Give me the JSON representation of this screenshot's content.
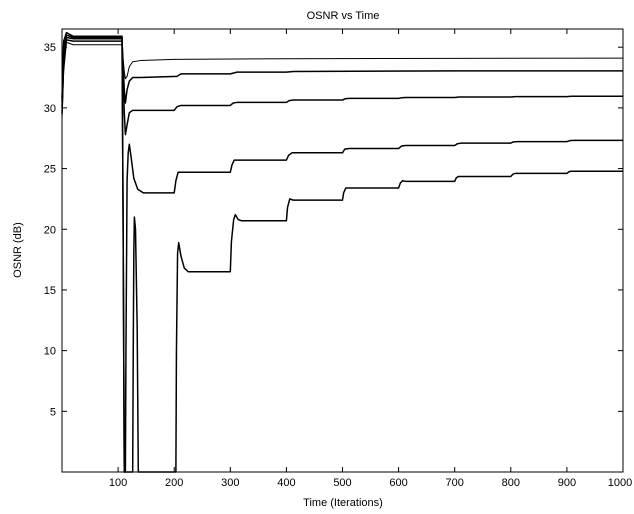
{
  "chart_data": {
    "type": "line",
    "title": "OSNR vs Time",
    "xlabel": "Time (Iterations)",
    "ylabel": "OSNR (dB)",
    "xlim": [
      0,
      1000
    ],
    "ylim": [
      0,
      36.5
    ],
    "xticks": [
      100,
      200,
      300,
      400,
      500,
      600,
      700,
      800,
      900,
      1000
    ],
    "yticks": [
      5,
      10,
      15,
      20,
      25,
      30,
      35
    ],
    "grid": false,
    "legend": "none",
    "line_color": "#000000",
    "series": [
      {
        "points": [
          [
            0,
            29
          ],
          [
            3,
            33
          ],
          [
            8,
            35.4
          ],
          [
            20,
            35.2
          ],
          [
            105,
            35.2
          ],
          [
            107,
            35.2
          ],
          [
            109,
            34.0
          ],
          [
            111,
            33.0
          ],
          [
            113,
            32.4
          ],
          [
            116,
            32.6
          ],
          [
            120,
            33.4
          ],
          [
            126,
            33.8
          ],
          [
            140,
            33.9
          ],
          [
            200,
            34.0
          ],
          [
            400,
            34.05
          ],
          [
            700,
            34.08
          ],
          [
            1000,
            34.1
          ]
        ]
      },
      {
        "points": [
          [
            0,
            29.5
          ],
          [
            3,
            33.8
          ],
          [
            8,
            35.6
          ],
          [
            20,
            35.5
          ],
          [
            105,
            35.5
          ],
          [
            107,
            35.5
          ],
          [
            109,
            33.5
          ],
          [
            111,
            31.5
          ],
          [
            113,
            30.4
          ],
          [
            116,
            31.5
          ],
          [
            120,
            32.2
          ],
          [
            126,
            32.5
          ],
          [
            140,
            32.5
          ],
          [
            205,
            32.6
          ],
          [
            212,
            32.8
          ],
          [
            300,
            32.8
          ],
          [
            312,
            32.95
          ],
          [
            400,
            32.95
          ],
          [
            412,
            33.0
          ],
          [
            700,
            33.05
          ],
          [
            1000,
            33.05
          ]
        ]
      },
      {
        "points": [
          [
            0,
            30
          ],
          [
            3,
            34.5
          ],
          [
            8,
            35.8
          ],
          [
            20,
            35.7
          ],
          [
            105,
            35.7
          ],
          [
            107,
            35.7
          ],
          [
            109,
            32.5
          ],
          [
            111,
            29.6
          ],
          [
            113,
            27.8
          ],
          [
            116,
            28.6
          ],
          [
            120,
            29.6
          ],
          [
            126,
            29.8
          ],
          [
            200,
            29.8
          ],
          [
            205,
            30.1
          ],
          [
            212,
            30.2
          ],
          [
            300,
            30.2
          ],
          [
            305,
            30.4
          ],
          [
            312,
            30.45
          ],
          [
            400,
            30.45
          ],
          [
            405,
            30.6
          ],
          [
            412,
            30.65
          ],
          [
            500,
            30.65
          ],
          [
            505,
            30.75
          ],
          [
            512,
            30.78
          ],
          [
            600,
            30.78
          ],
          [
            606,
            30.84
          ],
          [
            612,
            30.86
          ],
          [
            700,
            30.86
          ],
          [
            708,
            30.9
          ],
          [
            800,
            30.9
          ],
          [
            808,
            30.93
          ],
          [
            900,
            30.93
          ],
          [
            908,
            30.96
          ],
          [
            1000,
            30.96
          ]
        ]
      },
      {
        "points": [
          [
            0,
            30.5
          ],
          [
            3,
            35.1
          ],
          [
            8,
            36.0
          ],
          [
            20,
            35.8
          ],
          [
            105,
            35.8
          ],
          [
            107,
            35.8
          ],
          [
            109,
            20.0
          ],
          [
            111,
            0
          ],
          [
            113,
            0
          ],
          [
            114,
            10
          ],
          [
            116,
            24.0
          ],
          [
            118,
            26.3
          ],
          [
            120,
            27.0
          ],
          [
            123,
            26.0
          ],
          [
            128,
            24.2
          ],
          [
            135,
            23.3
          ],
          [
            145,
            23.0
          ],
          [
            200,
            23.0
          ],
          [
            203,
            24.0
          ],
          [
            207,
            24.7
          ],
          [
            212,
            24.7
          ],
          [
            300,
            24.7
          ],
          [
            303,
            25.3
          ],
          [
            307,
            25.7
          ],
          [
            312,
            25.7
          ],
          [
            400,
            25.7
          ],
          [
            404,
            26.1
          ],
          [
            410,
            26.3
          ],
          [
            500,
            26.3
          ],
          [
            504,
            26.6
          ],
          [
            512,
            26.65
          ],
          [
            600,
            26.65
          ],
          [
            605,
            26.85
          ],
          [
            612,
            26.9
          ],
          [
            700,
            26.9
          ],
          [
            705,
            27.05
          ],
          [
            712,
            27.1
          ],
          [
            800,
            27.1
          ],
          [
            805,
            27.2
          ],
          [
            812,
            27.22
          ],
          [
            900,
            27.22
          ],
          [
            905,
            27.3
          ],
          [
            912,
            27.32
          ],
          [
            1000,
            27.32
          ]
        ]
      },
      {
        "points": [
          [
            0,
            30.8
          ],
          [
            3,
            35.5
          ],
          [
            8,
            36.2
          ],
          [
            20,
            35.9
          ],
          [
            105,
            35.9
          ],
          [
            107,
            35.9
          ],
          [
            109,
            20.0
          ],
          [
            111,
            0
          ],
          [
            126,
            0
          ],
          [
            127,
            10
          ],
          [
            128,
            18.0
          ],
          [
            129,
            21.0
          ],
          [
            131,
            20.0
          ],
          [
            134,
            12.0
          ],
          [
            136,
            0
          ],
          [
            203,
            0
          ],
          [
            204,
            10
          ],
          [
            206,
            18.0
          ],
          [
            208,
            18.9
          ],
          [
            212,
            17.8
          ],
          [
            218,
            16.8
          ],
          [
            225,
            16.5
          ],
          [
            300,
            16.5
          ],
          [
            302,
            19.0
          ],
          [
            306,
            20.8
          ],
          [
            309,
            21.2
          ],
          [
            314,
            20.8
          ],
          [
            320,
            20.7
          ],
          [
            400,
            20.7
          ],
          [
            402,
            21.8
          ],
          [
            406,
            22.5
          ],
          [
            412,
            22.4
          ],
          [
            500,
            22.4
          ],
          [
            502,
            23.0
          ],
          [
            506,
            23.4
          ],
          [
            512,
            23.4
          ],
          [
            600,
            23.4
          ],
          [
            603,
            23.8
          ],
          [
            607,
            24.0
          ],
          [
            612,
            23.95
          ],
          [
            700,
            23.95
          ],
          [
            703,
            24.25
          ],
          [
            707,
            24.35
          ],
          [
            800,
            24.35
          ],
          [
            804,
            24.55
          ],
          [
            808,
            24.6
          ],
          [
            900,
            24.6
          ],
          [
            904,
            24.75
          ],
          [
            908,
            24.78
          ],
          [
            1000,
            24.78
          ]
        ]
      }
    ]
  }
}
